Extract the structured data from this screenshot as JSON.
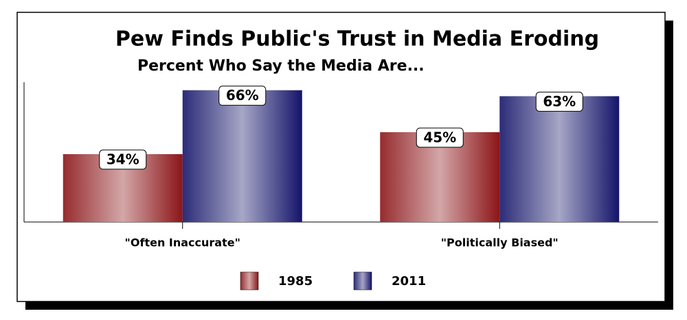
{
  "chart_data": {
    "type": "bar",
    "title": "Pew Finds Public's Trust in Media Eroding",
    "subtitle": "Percent Who Say the Media Are...",
    "categories": [
      "\"Often Inaccurate\"",
      "\"Politically Biased\""
    ],
    "series": [
      {
        "name": "1985",
        "color": "#8b1518",
        "values": [
          34,
          45
        ],
        "value_labels": [
          "34%",
          "45%"
        ]
      },
      {
        "name": "2011",
        "color": "#14146a",
        "values": [
          66,
          63
        ],
        "value_labels": [
          "66%",
          "63%"
        ]
      }
    ],
    "ylim": [
      0,
      70
    ],
    "legend": "bottom"
  }
}
